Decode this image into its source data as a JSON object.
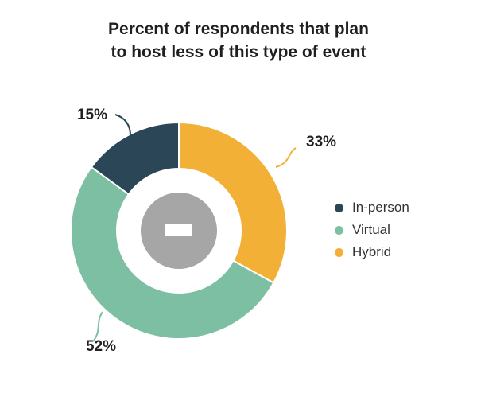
{
  "chart_data": {
    "type": "pie",
    "title_lines": [
      "Percent of respondents that plan",
      "to host less of this type of event"
    ],
    "slices": [
      {
        "name": "Hybrid",
        "value": 33,
        "label": "33%",
        "color": "#F2B136"
      },
      {
        "name": "Virtual",
        "value": 52,
        "label": "52%",
        "color": "#7DBFA3"
      },
      {
        "name": "In-person",
        "value": 15,
        "label": "15%",
        "color": "#2B4656"
      }
    ],
    "legend_order": [
      "In-person",
      "Virtual",
      "Hybrid"
    ],
    "legend_placement": "right",
    "center_icon": "minus-icon"
  }
}
